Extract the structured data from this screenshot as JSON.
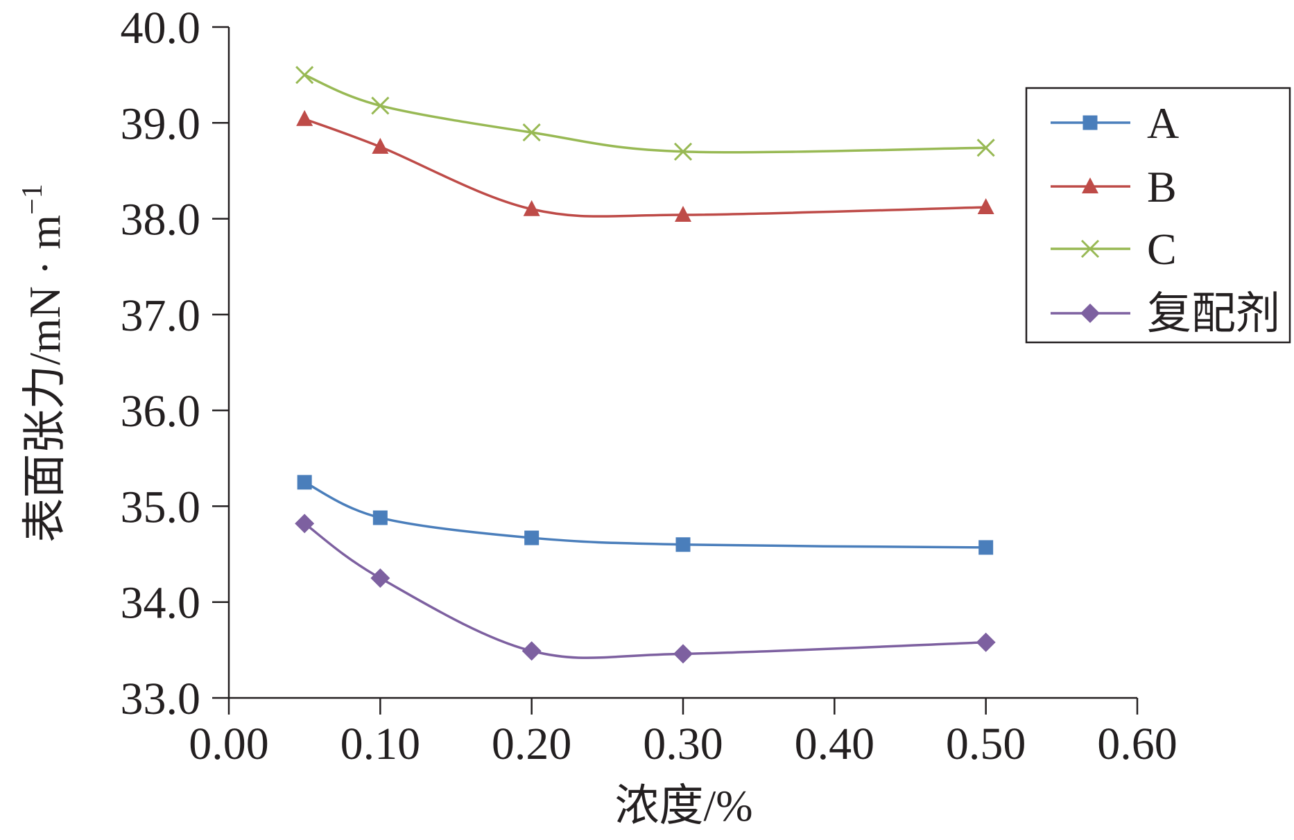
{
  "chart_data": {
    "type": "line",
    "smooth": true,
    "x": [
      0.05,
      0.1,
      0.2,
      0.3,
      0.5
    ],
    "series": [
      {
        "name": "A",
        "values": [
          35.25,
          34.88,
          34.67,
          34.6,
          34.57
        ],
        "color": "#4A7EBB",
        "marker": "square"
      },
      {
        "name": "B",
        "values": [
          39.04,
          38.75,
          38.1,
          38.04,
          38.12
        ],
        "color": "#BE4B48",
        "marker": "triangle"
      },
      {
        "name": "C",
        "values": [
          39.5,
          39.18,
          38.9,
          38.7,
          38.74
        ],
        "color": "#98B954",
        "marker": "x"
      },
      {
        "name": "复配剂",
        "values": [
          34.82,
          34.25,
          33.49,
          33.46,
          33.58
        ],
        "color": "#7D60A0",
        "marker": "diamond"
      }
    ],
    "xlabel": "浓度/%",
    "ylabel": "表面张力/mN · m",
    "ylabel_superscript": "−1",
    "xlim": [
      0,
      0.6
    ],
    "ylim": [
      33,
      40
    ],
    "xtick_labels": [
      "0.00",
      "0.10",
      "0.20",
      "0.30",
      "0.40",
      "0.50",
      "0.60"
    ],
    "ytick_labels": [
      "33.0",
      "34.0",
      "35.0",
      "36.0",
      "37.0",
      "38.0",
      "39.0",
      "40.0"
    ],
    "grid": false,
    "legend": "right"
  }
}
